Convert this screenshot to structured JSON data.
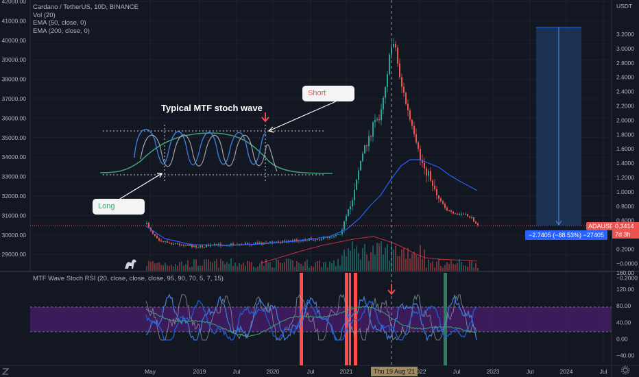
{
  "header": {
    "symbol_line": "Cardano / TetherUS, 10D, BINANCE",
    "indicators": [
      "Vol (20)",
      "EMA (50, close, 0)",
      "EMA (200, close, 0)"
    ]
  },
  "left_axis": {
    "labels": [
      "42000.00",
      "41000.00",
      "40000.00",
      "39000.00",
      "38000.00",
      "37000.00",
      "36000.00",
      "35000.00",
      "34000.00",
      "33000.00",
      "32000.00",
      "31000.00",
      "30000.00",
      "29000.00"
    ]
  },
  "right_axis": {
    "unit": "USDT",
    "labels": [
      "3.2000",
      "3.0000",
      "2.8000",
      "2.6000",
      "2.4000",
      "2.2000",
      "2.0000",
      "1.8000",
      "1.6000",
      "1.4000",
      "1.2000",
      "1.0000",
      "0.8000",
      "0.6000",
      "0.4000",
      "0.2000",
      "−0.0000",
      "−0.2000"
    ],
    "last_symbol": "ADAUSDT",
    "last_price": "0.3414",
    "countdown": "7d 3h"
  },
  "osc_axis": {
    "labels": [
      "160.00",
      "120.00",
      "80.00",
      "40.00",
      "0.00",
      "−40.00"
    ]
  },
  "oscillator": {
    "title": "MTF Wave Stoch RSI (20, close, close, close, 95, 90, 70, 5, 7, 15)"
  },
  "annotations": {
    "headline": "Typical MTF stoch wave",
    "short_label": "Short",
    "long_label": "Long",
    "measure_label": "−2.7405 (−88.53%) −27405"
  },
  "time_axis": {
    "labels": [
      "May",
      "2019",
      "Jul",
      "2020",
      "Jul",
      "2021",
      "2022",
      "Jul",
      "2023",
      "Jul",
      "2024",
      "Jul"
    ],
    "crosshair_date": "Thu 19 Aug '21"
  },
  "colors": {
    "background": "#131722",
    "up": "#26a69a",
    "down": "#ef5350",
    "ema50": "#2962ff",
    "ema200": "#f23645",
    "band": "#4a1d6e",
    "marker_red": "#ff4d4d",
    "marker_green": "#2e7d5b",
    "measure_fill": "#1e3a5f"
  },
  "icons": [
    "z-logo-icon",
    "settings-gear-icon",
    "dino-icon"
  ]
}
